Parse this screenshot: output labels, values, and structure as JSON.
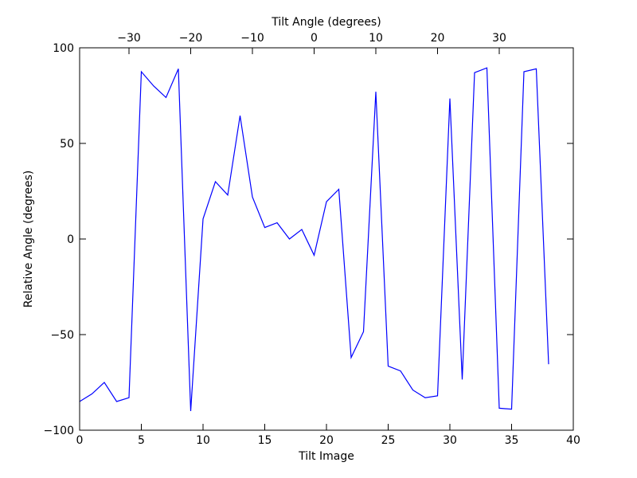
{
  "chart_data": {
    "type": "line",
    "title": "",
    "xlabel": "Tilt Image",
    "ylabel": "Relative Angle (degrees)",
    "x2label": "Tilt Angle (degrees)",
    "xlim": [
      0,
      40
    ],
    "ylim": [
      -100,
      100
    ],
    "xticks": [
      0,
      5,
      10,
      15,
      20,
      25,
      30,
      35,
      40
    ],
    "yticks": [
      -100,
      -50,
      0,
      50,
      100
    ],
    "ytick_labels": [
      "−100",
      "−50",
      "0",
      "50",
      "100"
    ],
    "x2ticks": [
      -30,
      -20,
      -10,
      0,
      10,
      20,
      30
    ],
    "x2tick_labels": [
      "−30",
      "−20",
      "−10",
      "0",
      "10",
      "20",
      "30"
    ],
    "x2_mapping": {
      "image_at_zero_angle": 19,
      "degrees_per_image": 2
    },
    "grid": false,
    "line_color": "#0000ff",
    "series": [
      {
        "x": [
          0,
          1,
          2,
          3,
          4,
          5,
          6,
          7,
          8,
          9,
          10,
          11,
          12,
          13,
          14,
          15,
          16,
          17,
          18,
          19,
          20,
          21,
          22,
          23,
          24,
          25,
          26,
          27,
          28,
          29,
          30,
          31,
          32,
          33,
          34,
          35,
          36,
          37,
          38
        ],
        "values": [
          -85,
          -81,
          -75,
          -85,
          -83,
          87.5,
          80,
          74,
          89,
          -90,
          10.5,
          30,
          23,
          64.5,
          22,
          6,
          8.5,
          0,
          5,
          -8.5,
          19.5,
          26,
          -62,
          -48.5,
          77,
          -66.5,
          -69,
          -79,
          -83,
          -82,
          73.5,
          -73.5,
          87,
          89.5,
          -88.5,
          -89,
          87.5,
          89,
          -65.5
        ]
      }
    ]
  }
}
